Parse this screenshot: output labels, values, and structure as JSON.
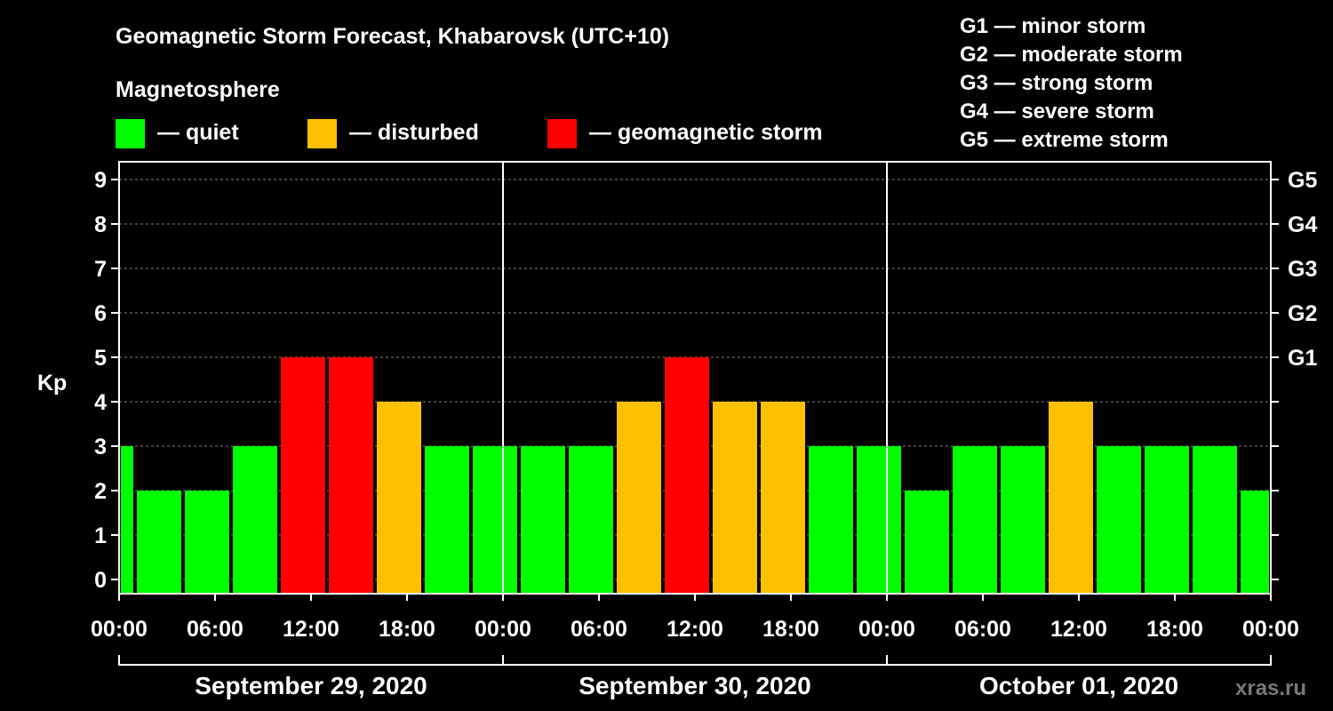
{
  "chart_data": {
    "type": "bar",
    "title": "Geomagnetic Storm Forecast, Khabarovsk (UTC+10)",
    "legend_title": "Magnetosphere",
    "legend": [
      {
        "label": "— quiet",
        "color": "#00ff00"
      },
      {
        "label": "— disturbed",
        "color": "#ffc000"
      },
      {
        "label": "— geomagnetic storm",
        "color": "#ff0000"
      }
    ],
    "scale_legend": [
      "G1 — minor storm",
      "G2 — moderate storm",
      "G3 — strong storm",
      "G4 — severe storm",
      "G5 — extreme storm"
    ],
    "ylabel": "Kp",
    "ylim": [
      0,
      9
    ],
    "y_ticks": [
      "0",
      "1",
      "2",
      "3",
      "4",
      "5",
      "6",
      "7",
      "8",
      "9"
    ],
    "right_ticks": [
      {
        "kp": 5,
        "label": "G1"
      },
      {
        "kp": 6,
        "label": "G2"
      },
      {
        "kp": 7,
        "label": "G3"
      },
      {
        "kp": 8,
        "label": "G4"
      },
      {
        "kp": 9,
        "label": "G5"
      }
    ],
    "x_range_hours": [
      0,
      72
    ],
    "x_ticks": [
      {
        "hour": 0,
        "label": "00:00"
      },
      {
        "hour": 6,
        "label": "06:00"
      },
      {
        "hour": 12,
        "label": "12:00"
      },
      {
        "hour": 18,
        "label": "18:00"
      },
      {
        "hour": 24,
        "label": "00:00"
      },
      {
        "hour": 30,
        "label": "06:00"
      },
      {
        "hour": 36,
        "label": "12:00"
      },
      {
        "hour": 42,
        "label": "18:00"
      },
      {
        "hour": 48,
        "label": "00:00"
      },
      {
        "hour": 54,
        "label": "06:00"
      },
      {
        "hour": 60,
        "label": "12:00"
      },
      {
        "hour": 66,
        "label": "18:00"
      },
      {
        "hour": 72,
        "label": "00:00"
      }
    ],
    "days": [
      {
        "label": "September 29, 2020",
        "start_hour": 0,
        "end_hour": 24
      },
      {
        "label": "September 30, 2020",
        "start_hour": 24,
        "end_hour": 48
      },
      {
        "label": "October 01, 2020",
        "start_hour": 48,
        "end_hour": 72
      }
    ],
    "series": [
      {
        "name": "Kp",
        "bars": [
          {
            "start_hour": 0,
            "end_hour": 1,
            "kp": 3,
            "level": "quiet"
          },
          {
            "start_hour": 1,
            "end_hour": 4,
            "kp": 2,
            "level": "quiet"
          },
          {
            "start_hour": 4,
            "end_hour": 7,
            "kp": 2,
            "level": "quiet"
          },
          {
            "start_hour": 7,
            "end_hour": 10,
            "kp": 3,
            "level": "quiet"
          },
          {
            "start_hour": 10,
            "end_hour": 13,
            "kp": 5,
            "level": "storm"
          },
          {
            "start_hour": 13,
            "end_hour": 16,
            "kp": 5,
            "level": "storm"
          },
          {
            "start_hour": 16,
            "end_hour": 19,
            "kp": 4,
            "level": "disturbed"
          },
          {
            "start_hour": 19,
            "end_hour": 22,
            "kp": 3,
            "level": "quiet"
          },
          {
            "start_hour": 22,
            "end_hour": 25,
            "kp": 3,
            "level": "quiet"
          },
          {
            "start_hour": 25,
            "end_hour": 28,
            "kp": 3,
            "level": "quiet"
          },
          {
            "start_hour": 28,
            "end_hour": 31,
            "kp": 3,
            "level": "quiet"
          },
          {
            "start_hour": 31,
            "end_hour": 34,
            "kp": 4,
            "level": "disturbed"
          },
          {
            "start_hour": 34,
            "end_hour": 37,
            "kp": 5,
            "level": "storm"
          },
          {
            "start_hour": 37,
            "end_hour": 40,
            "kp": 4,
            "level": "disturbed"
          },
          {
            "start_hour": 40,
            "end_hour": 43,
            "kp": 4,
            "level": "disturbed"
          },
          {
            "start_hour": 43,
            "end_hour": 46,
            "kp": 3,
            "level": "quiet"
          },
          {
            "start_hour": 46,
            "end_hour": 49,
            "kp": 3,
            "level": "quiet"
          },
          {
            "start_hour": 49,
            "end_hour": 52,
            "kp": 2,
            "level": "quiet"
          },
          {
            "start_hour": 52,
            "end_hour": 55,
            "kp": 3,
            "level": "quiet"
          },
          {
            "start_hour": 55,
            "end_hour": 58,
            "kp": 3,
            "level": "quiet"
          },
          {
            "start_hour": 58,
            "end_hour": 61,
            "kp": 4,
            "level": "disturbed"
          },
          {
            "start_hour": 61,
            "end_hour": 64,
            "kp": 3,
            "level": "quiet"
          },
          {
            "start_hour": 64,
            "end_hour": 67,
            "kp": 3,
            "level": "quiet"
          },
          {
            "start_hour": 67,
            "end_hour": 70,
            "kp": 3,
            "level": "quiet"
          },
          {
            "start_hour": 70,
            "end_hour": 72,
            "kp": 2,
            "level": "quiet"
          }
        ]
      }
    ],
    "level_colors": {
      "quiet": "#00ff00",
      "disturbed": "#ffc000",
      "storm": "#ff0000"
    },
    "grid": true,
    "watermark": "xras.ru"
  }
}
